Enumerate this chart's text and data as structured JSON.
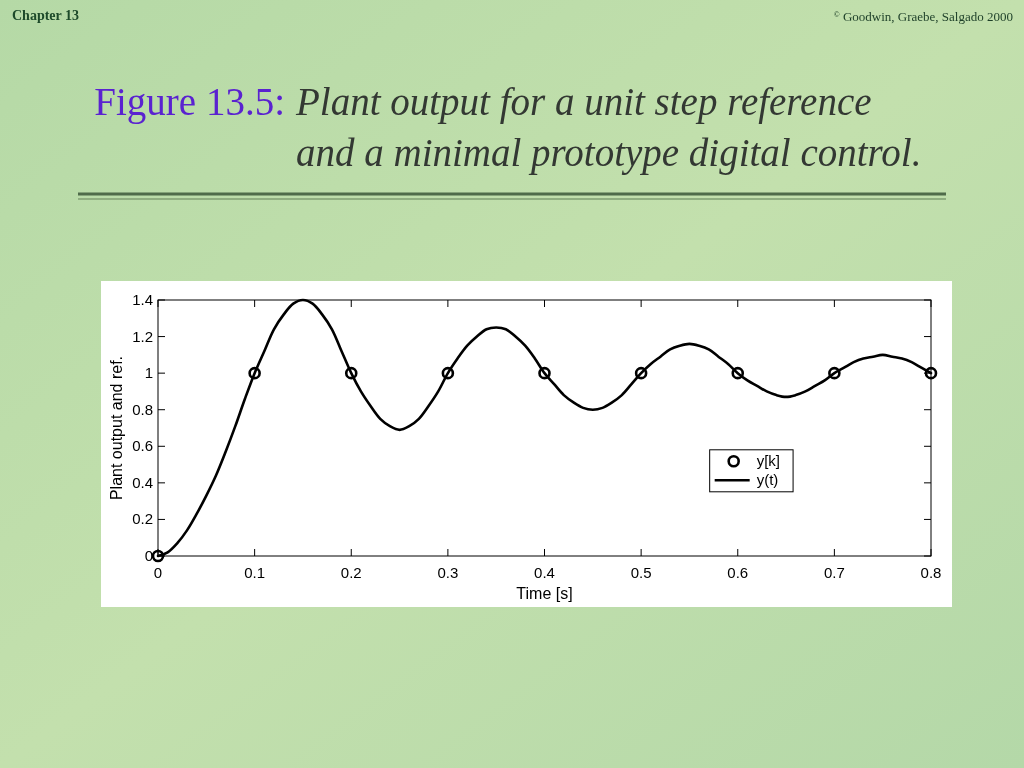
{
  "chart_data": {
    "type": "line",
    "title": "Figure 13.5: Plant output for a unit step reference and a minimal prototype digital control.",
    "xlabel": "Time [s]",
    "ylabel": "Plant output and ref.",
    "annotations": [
      "Chapter 13",
      "$^{©}$ Goodwin, Graebe, Salgado 2000"
    ],
    "series": [
      {
        "name": "y[k]",
        "type": "scatter",
        "color": "#000000",
        "marker": "circle",
        "x": [
          0,
          0.1,
          0.2,
          0.3,
          0.4,
          0.5,
          0.6,
          0.7,
          0.8
        ],
        "values": [
          0,
          1,
          1,
          1,
          1,
          1,
          1,
          1,
          1
        ]
      },
      {
        "name": "y(t)",
        "color": "#000000",
        "marker": "none",
        "line_style": "solid",
        "x": [
          0,
          0.01,
          0.02,
          0.03,
          0.04,
          0.05,
          0.06,
          0.07,
          0.08,
          0.09,
          0.1,
          0.11,
          0.12,
          0.13,
          0.14,
          0.15,
          0.16,
          0.17,
          0.18,
          0.19,
          0.2,
          0.21,
          0.22,
          0.23,
          0.24,
          0.25,
          0.26,
          0.27,
          0.28,
          0.29,
          0.3,
          0.31,
          0.32,
          0.33,
          0.34,
          0.35,
          0.36,
          0.37,
          0.38,
          0.39,
          0.4,
          0.41,
          0.42,
          0.43,
          0.44,
          0.45,
          0.46,
          0.47,
          0.48,
          0.49,
          0.5,
          0.51,
          0.52,
          0.53,
          0.54,
          0.55,
          0.56,
          0.57,
          0.58,
          0.59,
          0.6,
          0.61,
          0.62,
          0.63,
          0.64,
          0.65,
          0.66,
          0.67,
          0.68,
          0.69,
          0.7,
          0.71,
          0.72,
          0.73,
          0.74,
          0.75,
          0.76,
          0.77,
          0.78,
          0.79,
          0.8
        ],
        "values": [
          0,
          0.02,
          0.07,
          0.14,
          0.23,
          0.33,
          0.44,
          0.57,
          0.71,
          0.86,
          1.0,
          1.12,
          1.24,
          1.32,
          1.38,
          1.4,
          1.38,
          1.32,
          1.24,
          1.12,
          1.0,
          0.9,
          0.82,
          0.75,
          0.71,
          0.69,
          0.71,
          0.75,
          0.82,
          0.9,
          1.0,
          1.08,
          1.15,
          1.2,
          1.24,
          1.25,
          1.24,
          1.2,
          1.15,
          1.08,
          1.0,
          0.94,
          0.88,
          0.84,
          0.81,
          0.8,
          0.81,
          0.84,
          0.88,
          0.94,
          1.0,
          1.05,
          1.09,
          1.13,
          1.15,
          1.16,
          1.15,
          1.13,
          1.09,
          1.05,
          1.0,
          0.96,
          0.93,
          0.9,
          0.88,
          0.87,
          0.88,
          0.9,
          0.93,
          0.96,
          1.0,
          1.03,
          1.06,
          1.08,
          1.09,
          1.1,
          1.09,
          1.08,
          1.06,
          1.03,
          1.0
        ]
      }
    ],
    "xlim": [
      0,
      0.8
    ],
    "ylim": [
      0,
      1.4
    ],
    "xticks": [
      0,
      0.1,
      0.2,
      0.3,
      0.4,
      0.5,
      0.6,
      0.7,
      0.8
    ],
    "yticks": [
      0,
      0.2,
      0.4,
      0.6,
      0.8,
      1,
      1.2,
      1.4
    ],
    "legend": "right"
  }
}
